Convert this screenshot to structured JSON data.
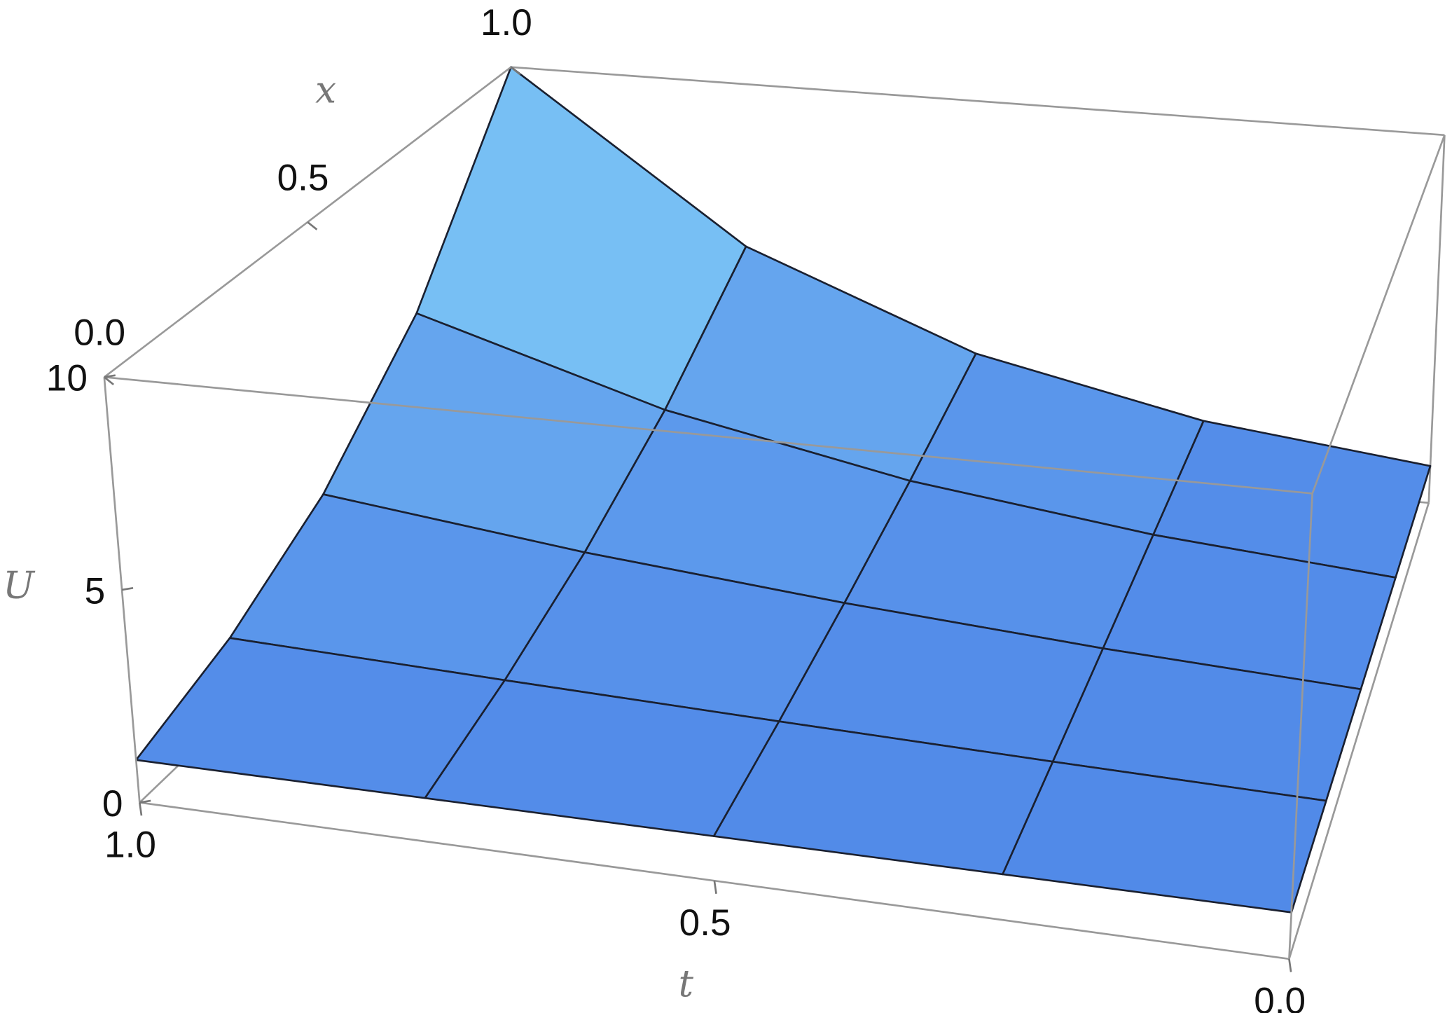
{
  "chart_data": {
    "type": "surface",
    "x_label": "x",
    "y_label": "t",
    "z_label": "U",
    "x": [
      0,
      0.25,
      0.5,
      0.75,
      1
    ],
    "y": [
      0,
      0.25,
      0.5,
      0.75,
      1
    ],
    "z": [
      [
        1,
        1,
        1,
        1,
        1
      ],
      [
        1,
        1.15,
        1.33,
        1.54,
        1.78
      ],
      [
        1,
        1.33,
        1.78,
        2.37,
        3.16
      ],
      [
        1,
        1.54,
        2.37,
        3.65,
        5.61
      ],
      [
        1,
        1.78,
        3.16,
        5.61,
        10.0
      ]
    ],
    "xlim": [
      0,
      1
    ],
    "ylim": [
      1,
      0
    ],
    "zlim": [
      0,
      10
    ],
    "xticks": [
      {
        "value": 0,
        "label": "0.0"
      },
      {
        "value": 0.5,
        "label": "0.5"
      },
      {
        "value": 1,
        "label": "1.0"
      }
    ],
    "yticks": [
      {
        "value": 1,
        "label": "1.0"
      },
      {
        "value": 0.5,
        "label": "0.5"
      },
      {
        "value": 0,
        "label": "0.0"
      }
    ],
    "zticks": [
      0,
      5,
      10
    ],
    "colors": {
      "low": "#4a7fe6",
      "high": "#92e6fc"
    },
    "mesh": true
  }
}
